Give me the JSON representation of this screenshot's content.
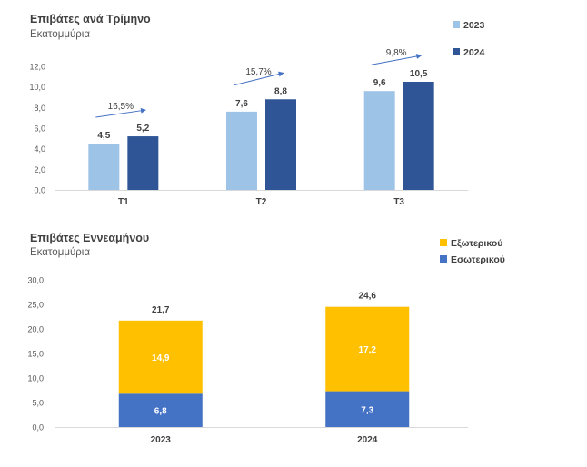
{
  "colors": {
    "bar_2023": "#9DC3E6",
    "bar_2024": "#2F5597",
    "foreign": "#FFC000",
    "domestic": "#4472C4",
    "axis_text": "#595959",
    "gridline": "#D9D9D9",
    "arrow": "#4472C4",
    "title": "#404040"
  },
  "chart_data": [
    {
      "type": "bar",
      "title": "Επιβάτες ανά Τρίμηνο",
      "subtitle": "Εκατομμύρια",
      "categories": [
        "Τ1",
        "Τ2",
        "Τ3"
      ],
      "series": [
        {
          "name": "2023",
          "values": [
            4.5,
            7.6,
            9.6
          ],
          "labels": [
            "4,5",
            "7,6",
            "9,6"
          ]
        },
        {
          "name": "2024",
          "values": [
            5.2,
            8.8,
            10.5
          ],
          "labels": [
            "5,2",
            "8,8",
            "10,5"
          ]
        }
      ],
      "growth_labels": [
        "16,5%",
        "15,7%",
        "9,8%"
      ],
      "yticks": [
        "0,0",
        "2,0",
        "4,0",
        "6,0",
        "8,0",
        "10,0",
        "12,0"
      ],
      "ylim": [
        0,
        12
      ],
      "legend_position": "top-right",
      "grid": false
    },
    {
      "type": "bar",
      "stacked": true,
      "title": "Επιβάτες Εννεαμήνου",
      "subtitle": "Εκατομμύρια",
      "categories": [
        "2023",
        "2024"
      ],
      "series": [
        {
          "name": "Εσωτερικού",
          "values": [
            6.8,
            7.3
          ],
          "labels": [
            "6,8",
            "7,3"
          ]
        },
        {
          "name": "Εξωτερικού",
          "values": [
            14.9,
            17.2
          ],
          "labels": [
            "14,9",
            "17,2"
          ]
        }
      ],
      "totals": [
        "21,7",
        "24,6"
      ],
      "legend_order": [
        "Εξωτερικού",
        "Εσωτερικού"
      ],
      "yticks": [
        "0,0",
        "5,0",
        "10,0",
        "15,0",
        "20,0",
        "25,0",
        "30,0"
      ],
      "ylim": [
        0,
        30
      ],
      "legend_position": "top-right",
      "grid": false
    }
  ]
}
